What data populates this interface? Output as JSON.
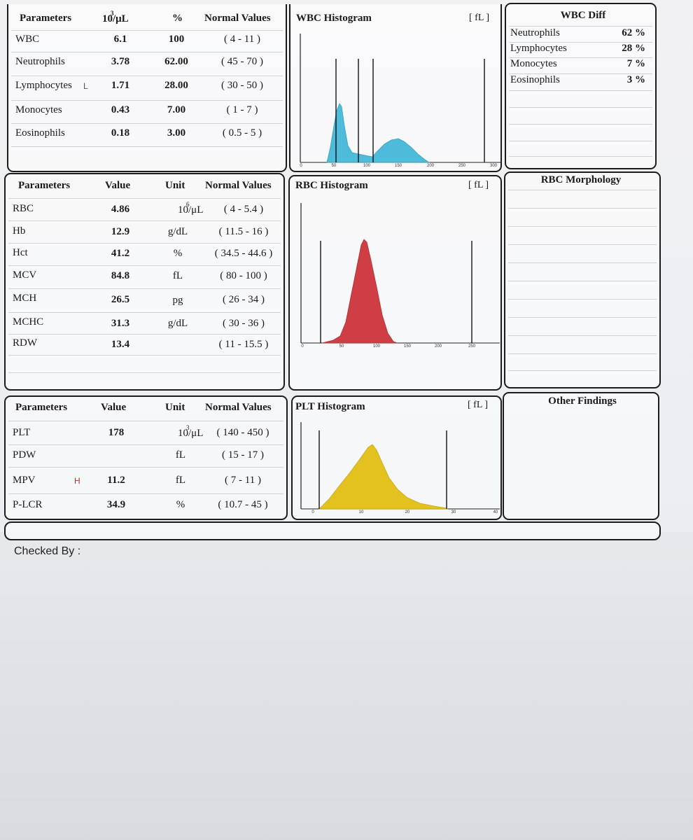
{
  "wbc_table": {
    "headers": {
      "parameters": "Parameters",
      "unit_base": "10",
      "unit_exp": "3",
      "unit_rest": "/μL",
      "percent": "%",
      "normal": "Normal Values"
    },
    "rows": [
      {
        "name": "WBC",
        "flag": "",
        "value": "6.1",
        "percent": "100",
        "normal": "( 4 - 11 )"
      },
      {
        "name": "Neutrophils",
        "flag": "",
        "value": "3.78",
        "percent": "62.00",
        "normal": "( 45 - 70 )"
      },
      {
        "name": "Lymphocytes",
        "flag": "L",
        "value": "1.71",
        "percent": "28.00",
        "normal": "( 30 - 50 )"
      },
      {
        "name": "Monocytes",
        "flag": "",
        "value": "0.43",
        "percent": "7.00",
        "normal": "( 1 - 7 )"
      },
      {
        "name": "Eosinophils",
        "flag": "",
        "value": "0.18",
        "percent": "3.00",
        "normal": "( 0.5 - 5 )"
      }
    ]
  },
  "wbc_histogram": {
    "title": "WBC Histogram",
    "unit": "[ fL ]",
    "ticks": [
      "0",
      "50",
      "100",
      "150",
      "200",
      "250",
      "300"
    ],
    "color": "#4dbbd9"
  },
  "wbc_diff": {
    "title": "WBC Diff",
    "rows": [
      {
        "name": "Neutrophils",
        "value": "62 %"
      },
      {
        "name": "Lymphocytes",
        "value": "28 %"
      },
      {
        "name": "Monocytes",
        "value": "7 %"
      },
      {
        "name": "Eosinophils",
        "value": "3 %"
      }
    ]
  },
  "rbc_table": {
    "headers": {
      "parameters": "Parameters",
      "value": "Value",
      "unit": "Unit",
      "normal": "Normal Values"
    },
    "rows": [
      {
        "name": "RBC",
        "value": "4.86",
        "unit_base": "10",
        "unit_exp": "6",
        "unit_rest": "/μL",
        "normal": "( 4 - 5.4 )"
      },
      {
        "name": "Hb",
        "value": "12.9",
        "unit": "g/dL",
        "normal": "( 11.5 - 16 )"
      },
      {
        "name": "Hct",
        "value": "41.2",
        "unit": "%",
        "normal": "( 34.5 - 44.6 )"
      },
      {
        "name": "MCV",
        "value": "84.8",
        "unit": "fL",
        "normal": "( 80 - 100 )"
      },
      {
        "name": "MCH",
        "value": "26.5",
        "unit": "pg",
        "normal": "( 26 - 34 )"
      },
      {
        "name": "MCHC",
        "value": "31.3",
        "unit": "g/dL",
        "normal": "( 30 - 36 )"
      },
      {
        "name": "RDW",
        "value": "13.4",
        "unit": "",
        "normal": "( 11 - 15.5 )"
      }
    ]
  },
  "rbc_histogram": {
    "title": "RBC Histogram",
    "unit": "[ fL ]",
    "ticks": [
      "0",
      "50",
      "100",
      "150",
      "200",
      "250"
    ],
    "color": "#cf3e44"
  },
  "rbc_morphology": {
    "title": "RBC Morphology"
  },
  "plt_table": {
    "headers": {
      "parameters": "Parameters",
      "value": "Value",
      "unit": "Unit",
      "normal": "Normal Values"
    },
    "rows": [
      {
        "name": "PLT",
        "flag": "",
        "value": "178",
        "unit_base": "10",
        "unit_exp": "3",
        "unit_rest": "/μL",
        "normal": "( 140 - 450 )"
      },
      {
        "name": "PDW",
        "flag": "",
        "value": "",
        "unit": "fL",
        "normal": "( 15 - 17 )"
      },
      {
        "name": "MPV",
        "flag": "H",
        "value": "11.2",
        "unit": "fL",
        "normal": "( 7 - 11 )"
      },
      {
        "name": "P-LCR",
        "flag": "",
        "value": "34.9",
        "unit": "%",
        "normal": "( 10.7 - 45 )"
      }
    ]
  },
  "plt_histogram": {
    "title": "PLT Histogram",
    "unit": "[ fL ]",
    "ticks": [
      "0",
      "10",
      "20",
      "30",
      "40"
    ],
    "color": "#e3c21f"
  },
  "other_findings": {
    "title": "Other Findings"
  },
  "footer": {
    "checked_by": "Checked By :"
  }
}
